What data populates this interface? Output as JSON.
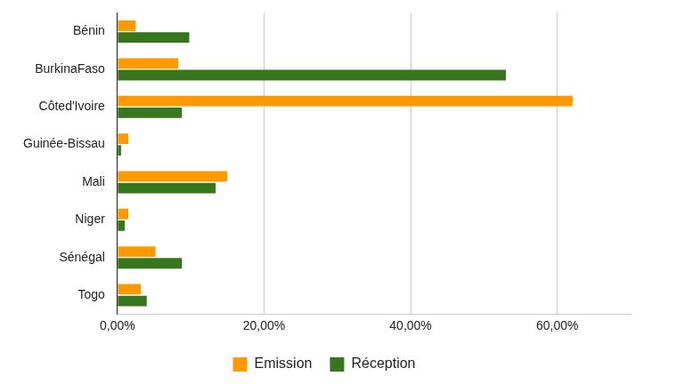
{
  "chart_data": {
    "type": "bar",
    "orientation": "horizontal",
    "categories": [
      "Bénin",
      "BurkinaFaso",
      "Côted'Ivoire",
      "Guinée-Bissau",
      "Mali",
      "Niger",
      "Sénégal",
      "Togo"
    ],
    "series": [
      {
        "name": "Emission",
        "color": "#ff9900",
        "values": [
          2.5,
          8.3,
          62.1,
          1.5,
          15.0,
          1.5,
          5.2,
          3.2
        ]
      },
      {
        "name": "Réception",
        "color": "#38761d",
        "values": [
          9.8,
          53.0,
          8.8,
          0.5,
          13.4,
          1.0,
          8.8,
          4.0
        ]
      }
    ],
    "xlim": [
      0,
      70
    ],
    "xticks": [
      {
        "value": 0,
        "label": "0,00%"
      },
      {
        "value": 20,
        "label": "20,00%"
      },
      {
        "value": 40,
        "label": "40,00%"
      },
      {
        "value": 60,
        "label": "60,00%"
      }
    ],
    "grid": true,
    "legend": "bottom"
  }
}
